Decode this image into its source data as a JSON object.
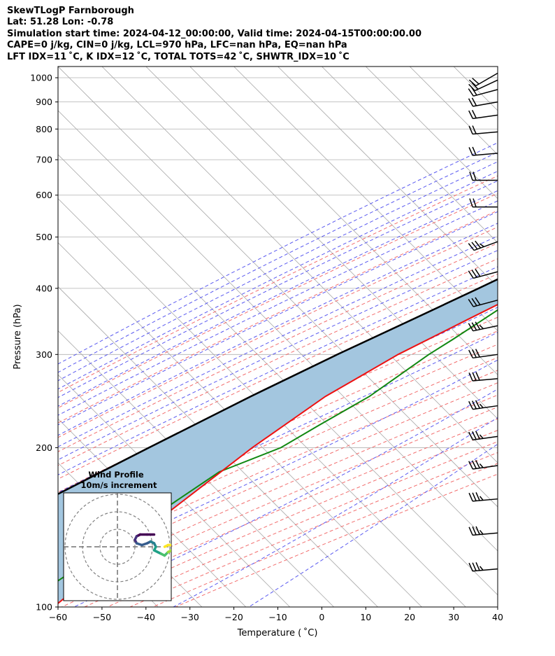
{
  "header": {
    "line1": "SkewTLogP Farnborough",
    "line2": "Lat: 51.28   Lon: -0.78",
    "line3": "Simulation start time: 2024-04-12_00:00:00, Valid time: 2024-04-15T00:00:00.00",
    "line4": "CAPE=0 j/kg, CIN=0 j/kg, LCL=970 hPa, LFC=nan hPa, EQ=nan hPa",
    "line5": "LFT IDX=11 ˚C, K IDX=12 ˚C, TOTAL TOTS=42 ˚C, SHWTR_IDX=10 ˚C"
  },
  "chart_data": {
    "type": "line",
    "subtype": "skew-t log-p",
    "xlabel": "Temperature ( ˚C)",
    "ylabel": "Pressure (hPa)",
    "xlim": [
      -60,
      40
    ],
    "ylim": [
      1050,
      100
    ],
    "y_scale": "log",
    "xticks": [
      -60,
      -50,
      -40,
      -30,
      -20,
      -10,
      0,
      10,
      20,
      30,
      40
    ],
    "xtick_labels": [
      "−60",
      "−50",
      "−40",
      "−30",
      "−20",
      "−10",
      "0",
      "10",
      "20",
      "30",
      "40"
    ],
    "yticks": [
      1000,
      900,
      800,
      700,
      600,
      500,
      400,
      300,
      200,
      100
    ],
    "ytick_labels": [
      "1000",
      "900",
      "800",
      "700",
      "600",
      "500",
      "400",
      "300",
      "200",
      "100"
    ],
    "grid": true,
    "colors": {
      "temperature": "#ee1111",
      "dewpoint": "#118811",
      "parcel": "#000000",
      "cape_fill": "#a3c6df",
      "dry_adiabat": "#f26d6d",
      "moist_adiabat": "#5a5af0",
      "mixing_ratio": "#9b30c0",
      "isotherm": "#999999",
      "barb": "#000000"
    },
    "series": [
      {
        "key": "temperature",
        "points": [
          [
            1050,
            6.3
          ],
          [
            1000,
            6.5
          ],
          [
            950,
            5.5
          ],
          [
            900,
            4.0
          ],
          [
            850,
            2.3
          ],
          [
            800,
            0.4
          ],
          [
            750,
            -1.0
          ],
          [
            700,
            -2.5
          ],
          [
            650,
            -4.5
          ],
          [
            600,
            -7.2
          ],
          [
            550,
            -10.5
          ],
          [
            500,
            -14.2
          ],
          [
            450,
            -19.0
          ],
          [
            400,
            -25.0
          ],
          [
            350,
            -32.0
          ],
          [
            300,
            -40.0
          ],
          [
            270,
            -44.0
          ],
          [
            250,
            -47.0
          ],
          [
            200,
            -52.0
          ],
          [
            150,
            -56.5
          ],
          [
            100,
            -61.0
          ]
        ]
      },
      {
        "key": "dewpoint",
        "points": [
          [
            1025,
            4.5
          ],
          [
            1000,
            3.8
          ],
          [
            950,
            1.5
          ],
          [
            900,
            -1.0
          ],
          [
            850,
            -3.3
          ],
          [
            800,
            -6.0
          ],
          [
            750,
            -9.0
          ],
          [
            700,
            -12.0
          ],
          [
            650,
            -17.0
          ],
          [
            600,
            -23.5
          ],
          [
            570,
            -22.0
          ],
          [
            550,
            -20.0
          ],
          [
            520,
            -18.5
          ],
          [
            480,
            -23.0
          ],
          [
            440,
            -27.0
          ],
          [
            400,
            -27.5
          ],
          [
            370,
            -27.0
          ],
          [
            350,
            -28.5
          ],
          [
            320,
            -31.0
          ],
          [
            300,
            -33.0
          ],
          [
            250,
            -37.0
          ],
          [
            220,
            -42.0
          ],
          [
            200,
            -45.5
          ],
          [
            180,
            -54.0
          ],
          [
            160,
            -57.0
          ],
          [
            130,
            -62.0
          ],
          [
            100,
            -69.0
          ]
        ]
      },
      {
        "key": "parcel",
        "points": [
          [
            1030,
            6.3
          ],
          [
            970,
            4.6
          ],
          [
            900,
            2.6
          ],
          [
            850,
            0.4
          ],
          [
            800,
            -2.0
          ],
          [
            750,
            -4.7
          ],
          [
            700,
            -7.6
          ],
          [
            650,
            -11.0
          ],
          [
            600,
            -14.8
          ],
          [
            550,
            -19.2
          ],
          [
            500,
            -24.2
          ],
          [
            450,
            -30.0
          ],
          [
            400,
            -36.7
          ],
          [
            350,
            -44.6
          ],
          [
            300,
            -53.8
          ],
          [
            250,
            -64.0
          ],
          [
            200,
            -75.5
          ],
          [
            150,
            -90.0
          ],
          [
            100,
            -110.0
          ]
        ]
      }
    ],
    "wind_barbs": [
      {
        "p": 1020,
        "speed": 20,
        "dir": 240
      },
      {
        "p": 990,
        "speed": 20,
        "dir": 245
      },
      {
        "p": 950,
        "speed": 20,
        "dir": 255
      },
      {
        "p": 900,
        "speed": 20,
        "dir": 260
      },
      {
        "p": 850,
        "speed": 20,
        "dir": 262
      },
      {
        "p": 790,
        "speed": 20,
        "dir": 265
      },
      {
        "p": 720,
        "speed": 20,
        "dir": 265
      },
      {
        "p": 640,
        "speed": 20,
        "dir": 270
      },
      {
        "p": 570,
        "speed": 20,
        "dir": 270
      },
      {
        "p": 490,
        "speed": 35,
        "dir": 250
      },
      {
        "p": 430,
        "speed": 30,
        "dir": 255
      },
      {
        "p": 380,
        "speed": 30,
        "dir": 255
      },
      {
        "p": 340,
        "speed": 35,
        "dir": 258
      },
      {
        "p": 300,
        "speed": 30,
        "dir": 262
      },
      {
        "p": 270,
        "speed": 30,
        "dir": 265
      },
      {
        "p": 240,
        "speed": 35,
        "dir": 262
      },
      {
        "p": 210,
        "speed": 35,
        "dir": 262
      },
      {
        "p": 185,
        "speed": 35,
        "dir": 262
      },
      {
        "p": 160,
        "speed": 35,
        "dir": 265
      },
      {
        "p": 138,
        "speed": 35,
        "dir": 265
      },
      {
        "p": 118,
        "speed": 35,
        "dir": 265
      }
    ],
    "wind_profile_inset": {
      "title": "Wind Profile",
      "subtitle": "10m/s increment",
      "rings_ms": [
        10,
        20,
        30
      ],
      "hodograph": [
        [
          21,
          7
        ],
        [
          17,
          7
        ],
        [
          13,
          7
        ],
        [
          11,
          6
        ],
        [
          10,
          4
        ],
        [
          11,
          2
        ],
        [
          14,
          1
        ],
        [
          17,
          2
        ],
        [
          19,
          3
        ],
        [
          21,
          2
        ],
        [
          22,
          0
        ],
        [
          21,
          -2
        ],
        [
          23,
          -3
        ],
        [
          25,
          -4
        ],
        [
          27,
          -5
        ],
        [
          29,
          -3
        ],
        [
          31,
          -2
        ],
        [
          32,
          -1
        ],
        [
          31,
          1
        ],
        [
          29,
          1
        ],
        [
          27,
          0
        ]
      ],
      "colormap": "viridis"
    }
  }
}
